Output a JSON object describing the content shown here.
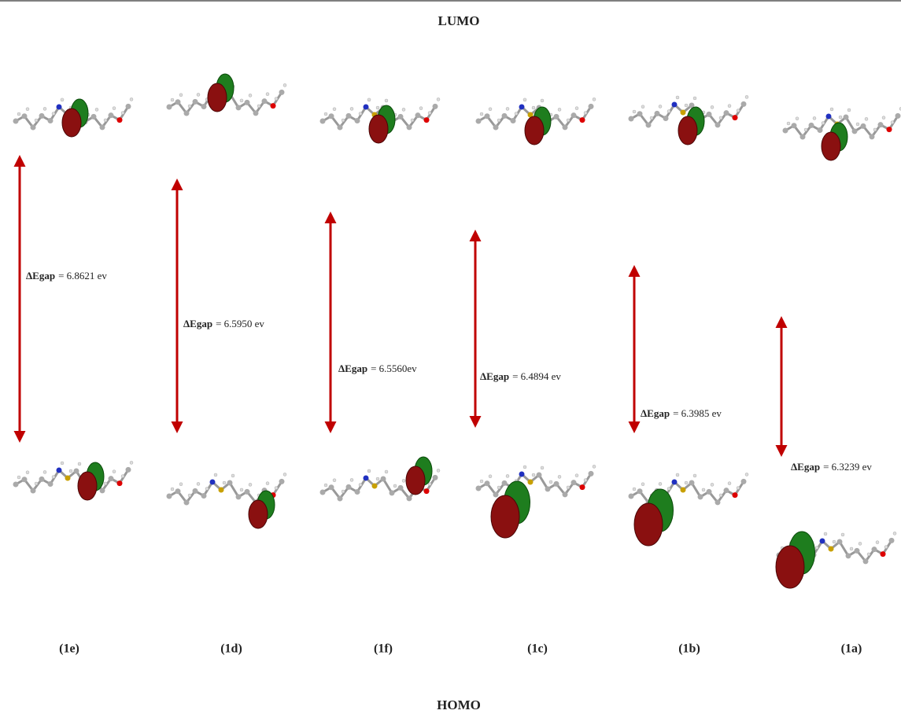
{
  "header": {
    "top": "LUMO",
    "bottom": "HOMO"
  },
  "columns": [
    {
      "label": "(1e)",
      "gap_label": "ΔEgap",
      "gap_text": "= 6.8621 ev"
    },
    {
      "label": "(1d)",
      "gap_label": "ΔEgap",
      "gap_text": "= 6.5950 ev"
    },
    {
      "label": "(1f)",
      "gap_label": "ΔEgap",
      "gap_text": "= 6.5560ev"
    },
    {
      "label": "(1c)",
      "gap_label": "ΔEgap",
      "gap_text": "=  6.4894 ev"
    },
    {
      "label": "(1b)",
      "gap_label": "ΔEgap",
      "gap_text": "= 6.3985 ev"
    },
    {
      "label": "(1a)",
      "gap_label": "ΔEgap",
      "gap_text": "= 6.3239 ev"
    }
  ]
}
